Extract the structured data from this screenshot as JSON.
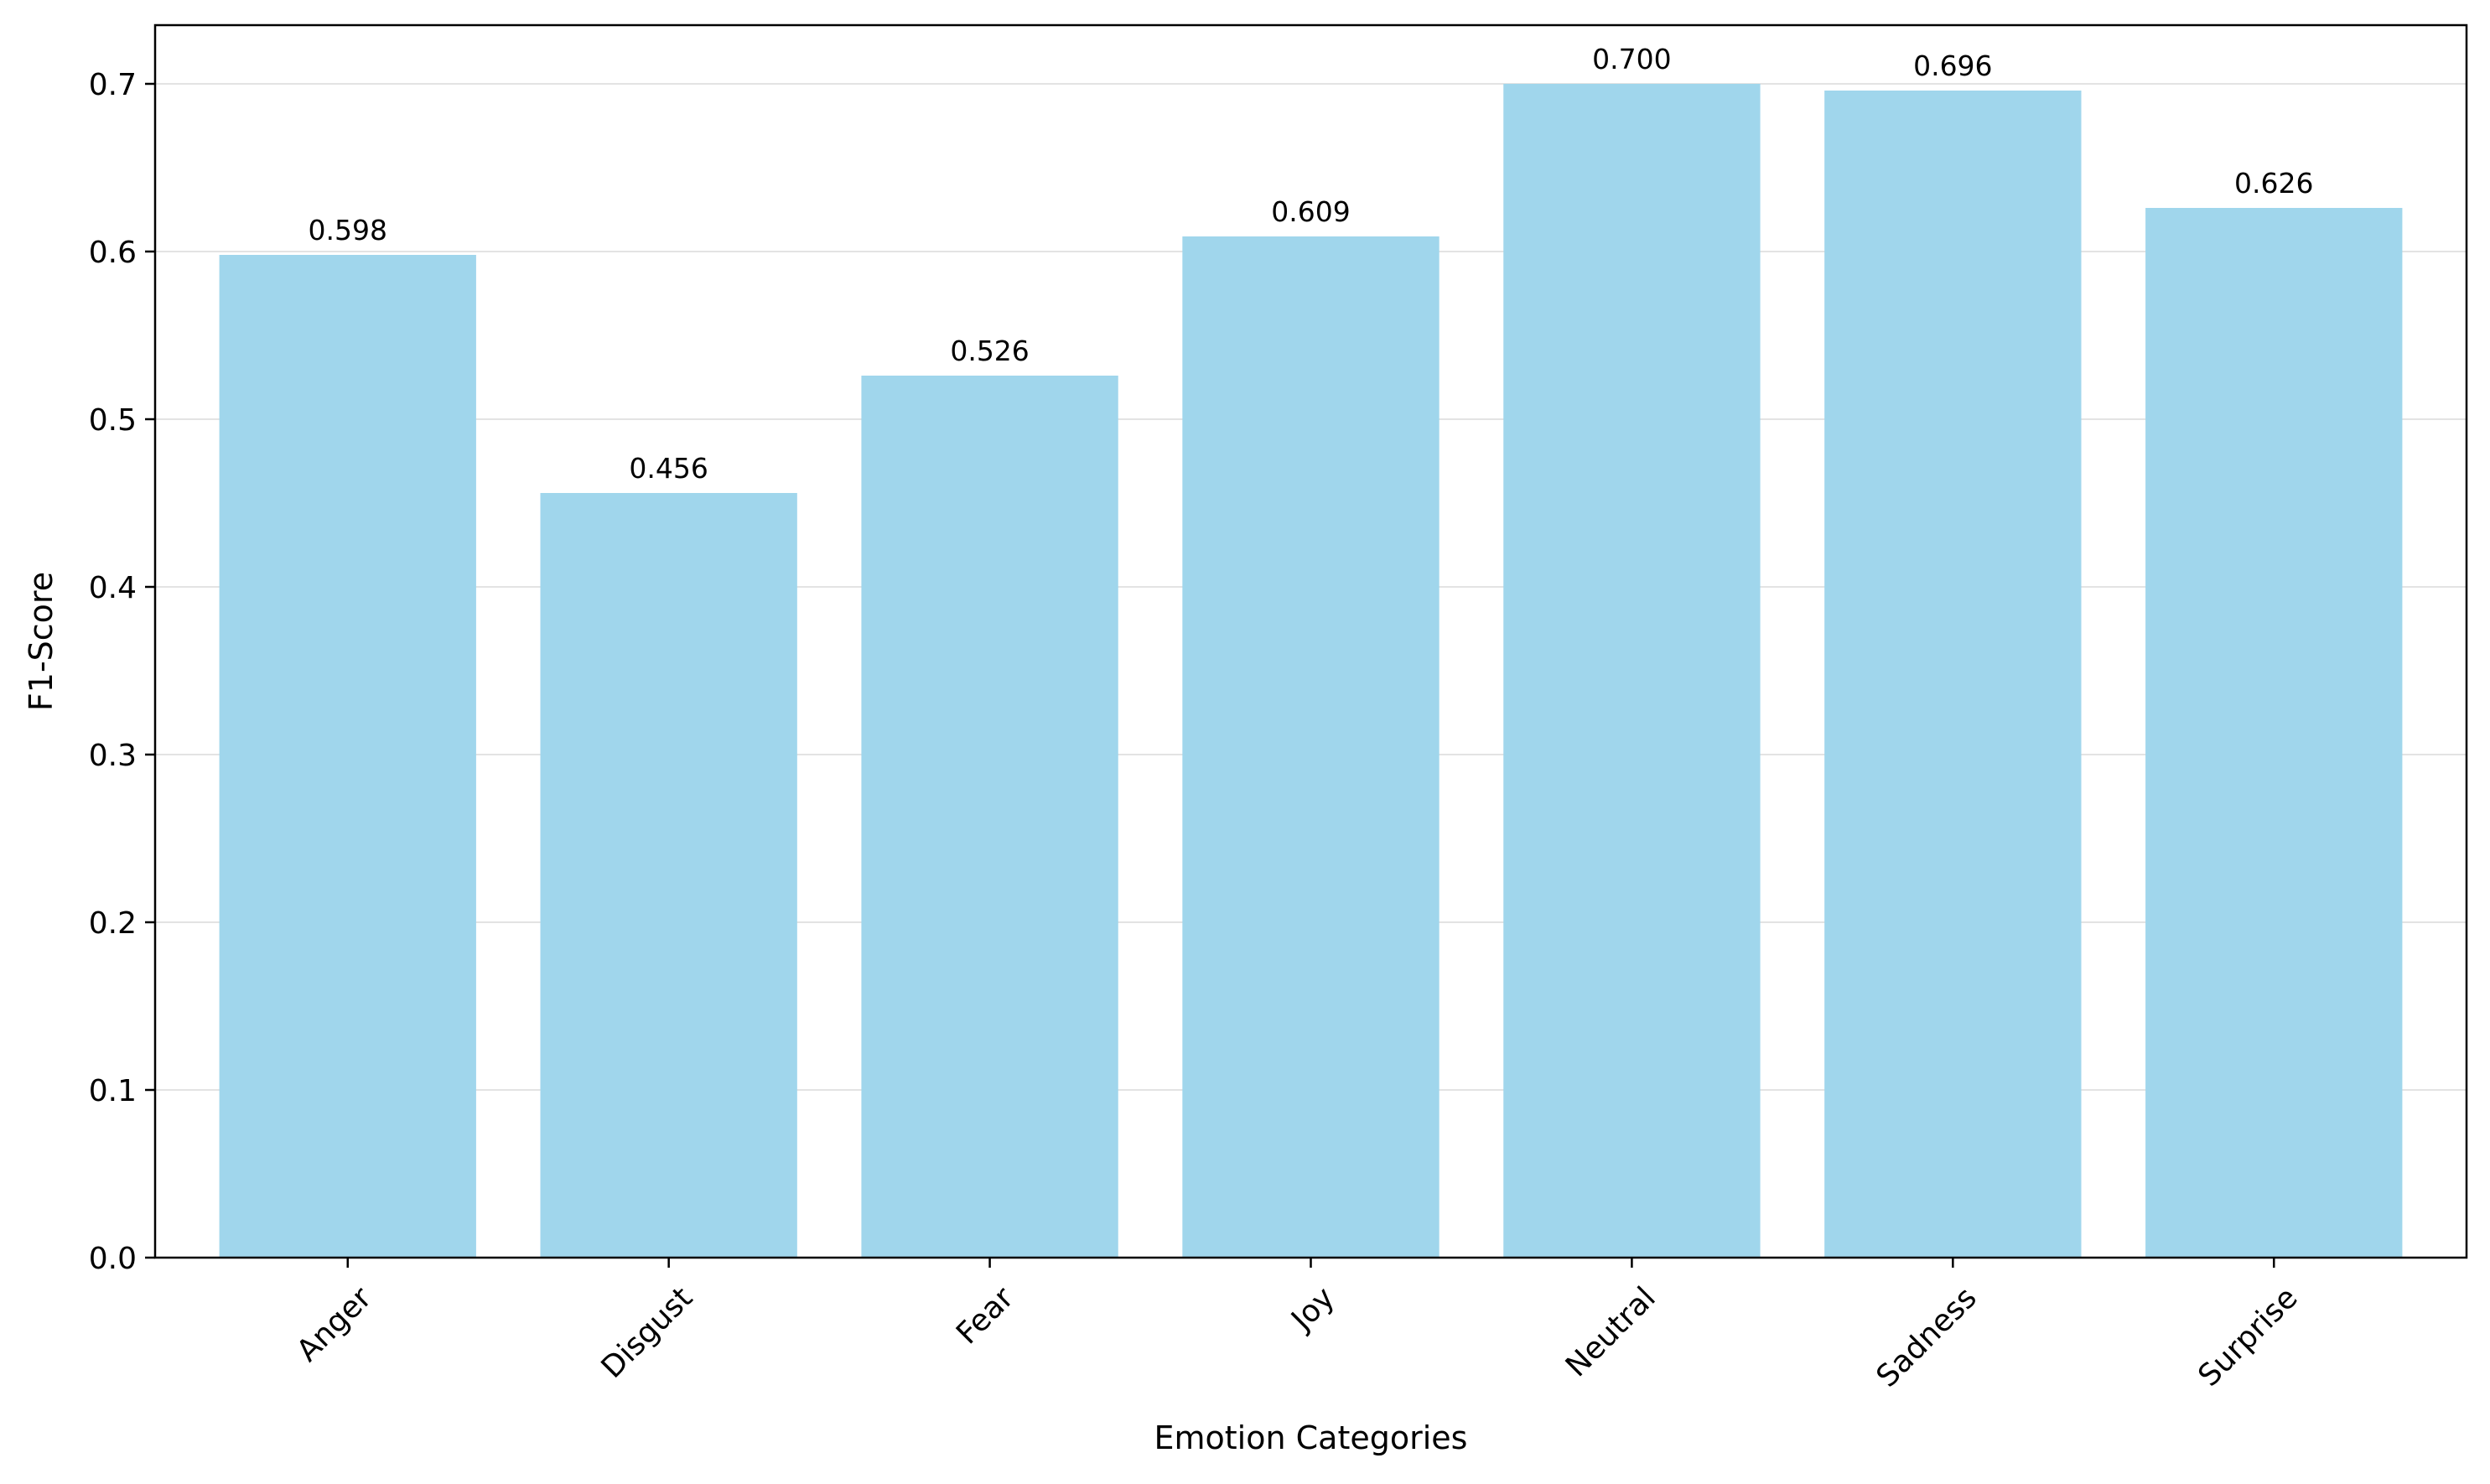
{
  "chart_data": {
    "type": "bar",
    "title": "",
    "xlabel": "Emotion Categories",
    "ylabel": "F1-Score",
    "categories": [
      "Anger",
      "Disgust",
      "Fear",
      "Joy",
      "Neutral",
      "Sadness",
      "Surprise"
    ],
    "values": [
      0.598,
      0.456,
      0.526,
      0.609,
      0.7,
      0.696,
      0.626
    ],
    "value_labels": [
      "0.598",
      "0.456",
      "0.526",
      "0.609",
      "0.700",
      "0.696",
      "0.626"
    ],
    "ylim": [
      0,
      0.735
    ],
    "yticks": [
      0.0,
      0.1,
      0.2,
      0.3,
      0.4,
      0.5,
      0.6,
      0.7
    ],
    "ytick_labels": [
      "0.0",
      "0.1",
      "0.2",
      "0.3",
      "0.4",
      "0.5",
      "0.6",
      "0.7"
    ],
    "grid": "y",
    "legend": "none",
    "bar_color": "#a0d6ec",
    "grid_color": "#e3e3e3",
    "axis_color": "#000000"
  }
}
